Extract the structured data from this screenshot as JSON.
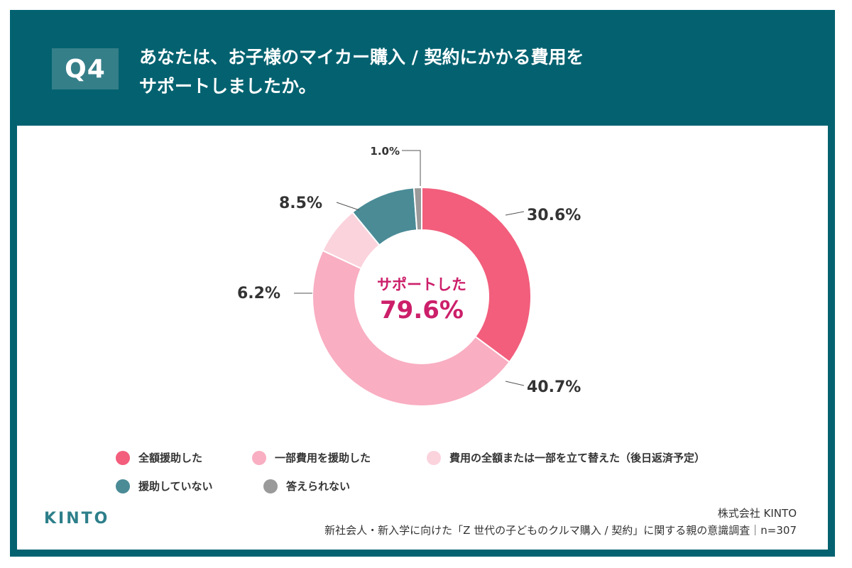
{
  "header": {
    "badge": "Q4",
    "title_line1": "あなたは、お子様のマイカー購入 / 契約にかかる費用を",
    "title_line2": "サポートしましたか。"
  },
  "chart_data": {
    "type": "pie",
    "donut": true,
    "center_label": "サポートした",
    "center_value": "79.6%",
    "slices": [
      {
        "name": "全額援助した",
        "value": 30.6,
        "label": "30.6%",
        "color": "#f25e7c"
      },
      {
        "name": "一部費用を援助した",
        "value": 40.7,
        "label": "40.7%",
        "color": "#f9aec2"
      },
      {
        "name": "費用の全額または一部を立て替えた（後日返済予定）",
        "value": 6.2,
        "label": "6.2%",
        "color": "#fbd3dd"
      },
      {
        "name": "援助していない",
        "value": 8.5,
        "label": "8.5%",
        "color": "#4a8b96"
      },
      {
        "name": "答えられない",
        "value": 1.0,
        "label": "1.0%",
        "color": "#9a9a9a"
      }
    ]
  },
  "colors": {
    "frame": "#046270",
    "badge": "#357f89",
    "accent": "#cc1f6a"
  },
  "footer": {
    "logo": "KINTO",
    "company": "株式会社 KINTO",
    "survey": "新社会人・新入学に向けた「Z 世代の子どものクルマ購入 / 契約」に関する親の意識調査｜n=307"
  }
}
